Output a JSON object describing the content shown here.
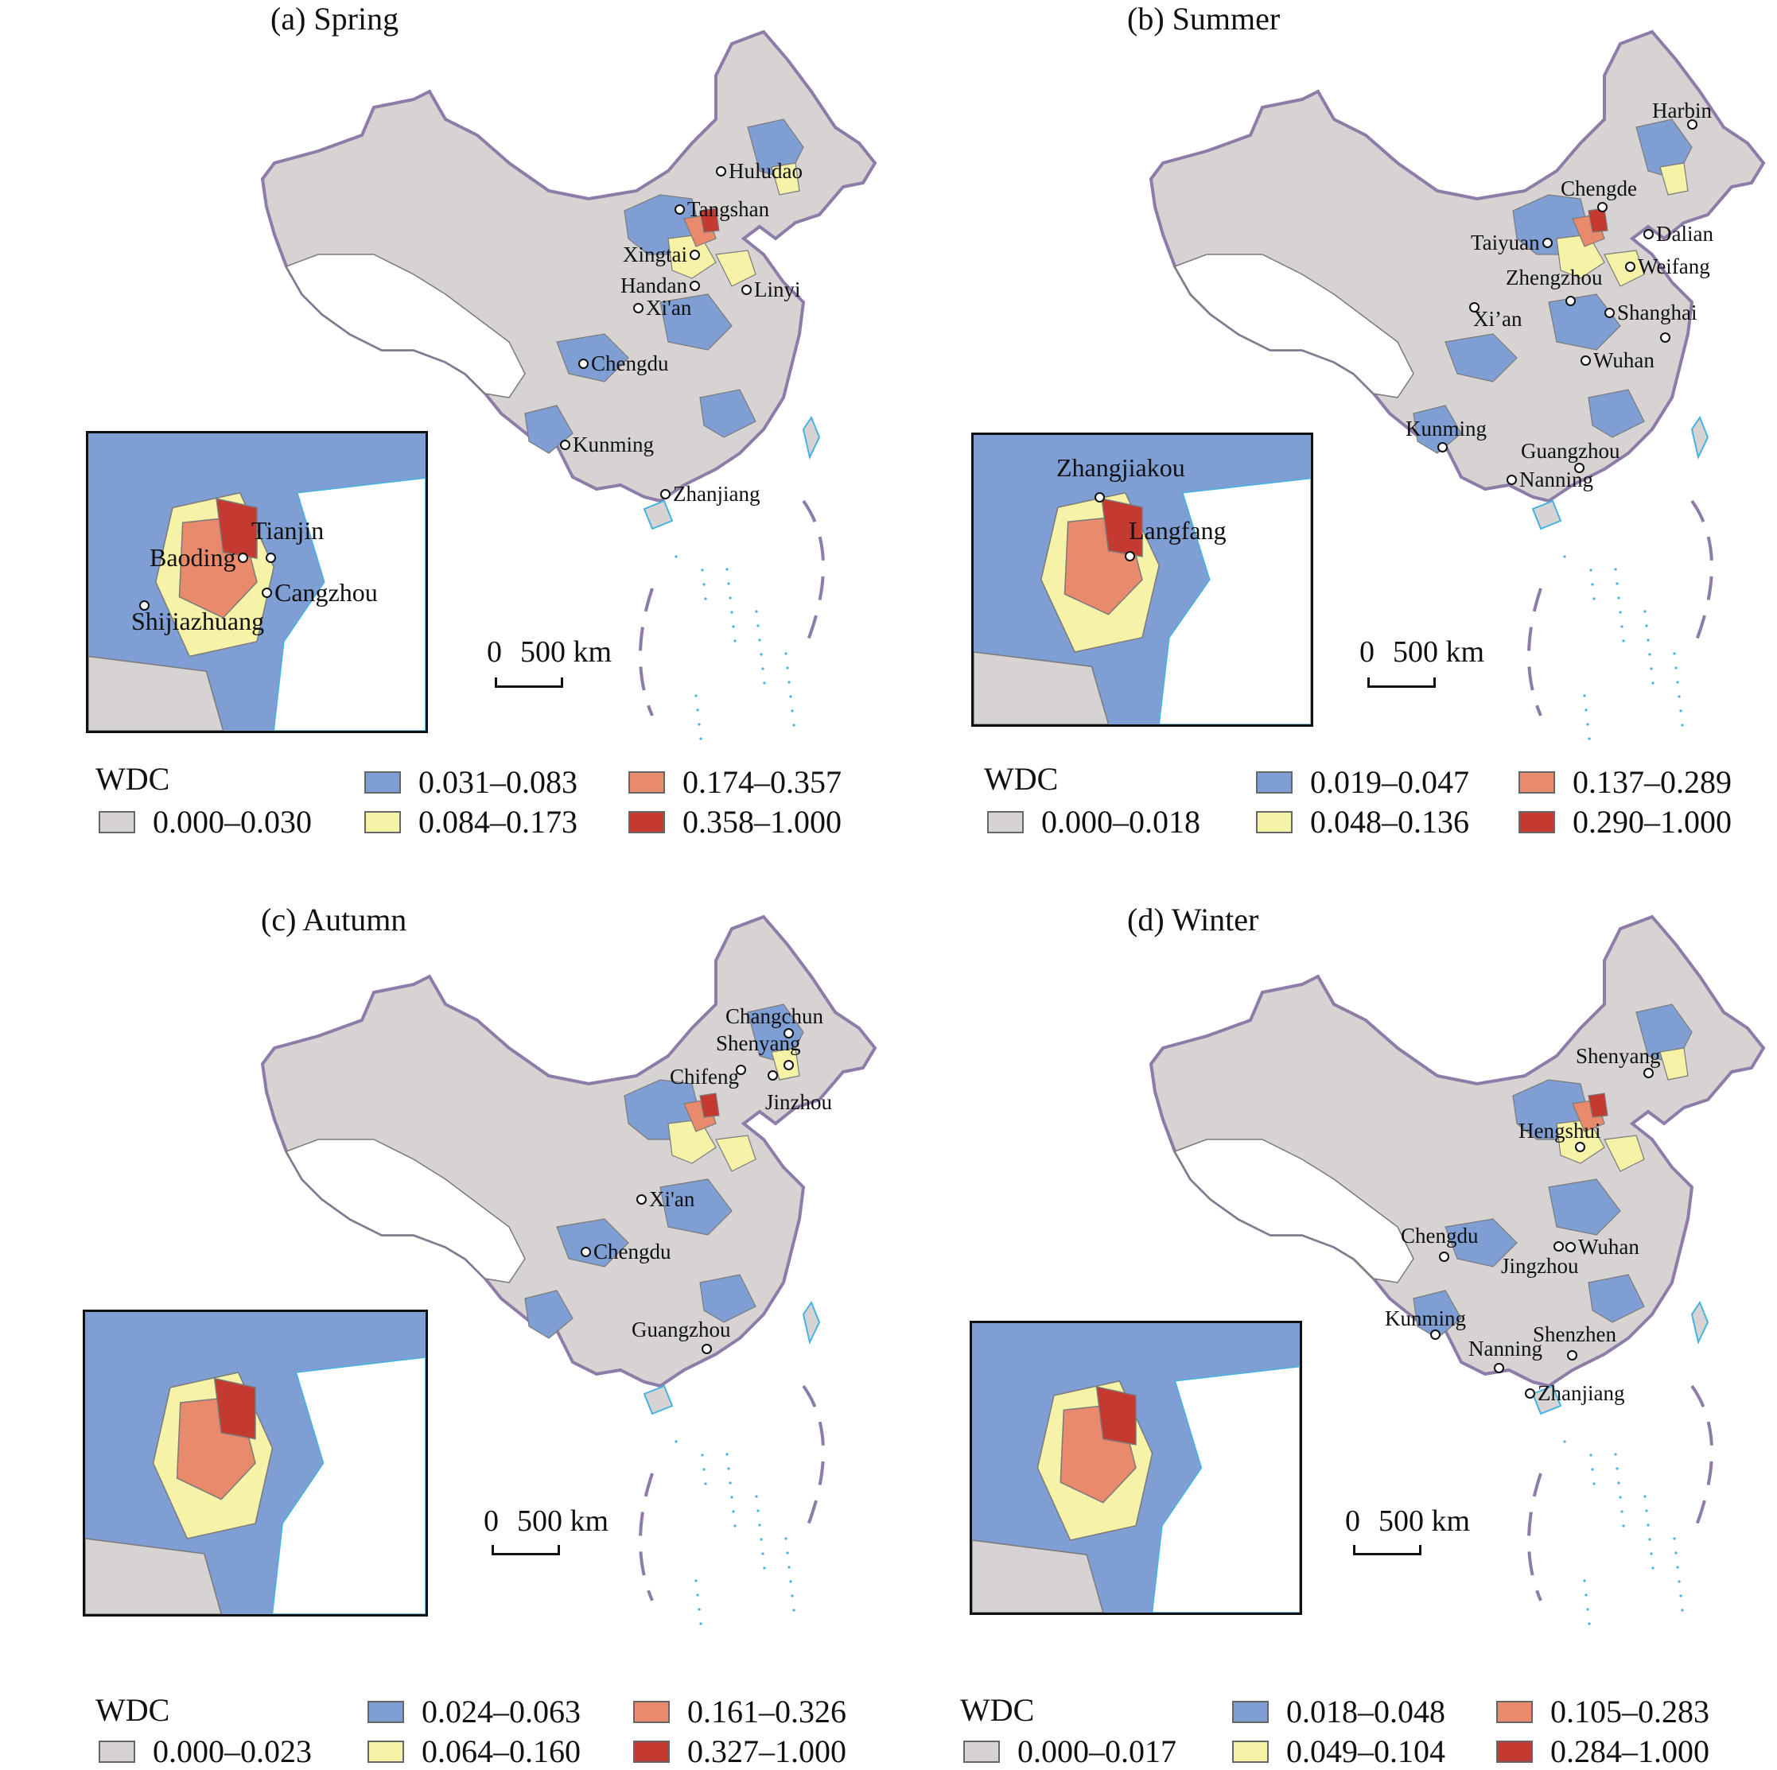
{
  "colors": {
    "class1": "#d8d3d3",
    "class2": "#7f9fd4",
    "class3": "#f6f2a7",
    "class4": "#e88a6b",
    "class5": "#c53a30",
    "border": "#8e7ca8",
    "district": "#7a7a7a",
    "sea": "#45b3e0"
  },
  "scale_label_zero": "0",
  "scale_label_dist": "500 km",
  "legend_title": "WDC",
  "panels": [
    {
      "title": "(a) Spring",
      "legend": [
        "0.000–0.030",
        "0.031–0.083",
        "0.084–0.173",
        "0.174–0.357",
        "0.358–1.000"
      ],
      "cities": [
        "Huludao",
        "Tangshan",
        "Xingtai",
        "Handan",
        "Linyi",
        "Xi'an",
        "Chengdu",
        "Kunming",
        "Zhanjiang"
      ],
      "inset_cities": [
        "Tianjin",
        "Baoding",
        "Cangzhou",
        "Shijiazhuang"
      ]
    },
    {
      "title": "(b) Summer",
      "legend": [
        "0.000–0.018",
        "0.019–0.047",
        "0.048–0.136",
        "0.137–0.289",
        "0.290–1.000"
      ],
      "cities": [
        "Harbin",
        "Chengde",
        "Dalian",
        "Taiyuan",
        "Weifang",
        "Zhengzhou",
        "Xi’an",
        "Shanghai",
        "Wuhan",
        "Kunming",
        "Guangzhou",
        "Nanning"
      ],
      "inset_cities": [
        "Zhangjiakou",
        "Langfang"
      ]
    },
    {
      "title": "(c) Autumn",
      "legend": [
        "0.000–0.023",
        "0.024–0.063",
        "0.064–0.160",
        "0.161–0.326",
        "0.327–1.000"
      ],
      "cities": [
        "Changchun",
        "Shenyang",
        "Chifeng",
        "Jinzhou",
        "Xi'an",
        "Chengdu",
        "Guangzhou"
      ],
      "inset_cities": []
    },
    {
      "title": "(d) Winter",
      "legend": [
        "0.000–0.017",
        "0.018–0.048",
        "0.049–0.104",
        "0.105–0.283",
        "0.284–1.000"
      ],
      "cities": [
        "Shenyang",
        "Hengshui",
        "Chengdu",
        "Wuhan",
        "Jingzhou",
        "Kunming",
        "Shenzhen",
        "Nanning",
        "Zhanjiang"
      ],
      "inset_cities": []
    }
  ]
}
